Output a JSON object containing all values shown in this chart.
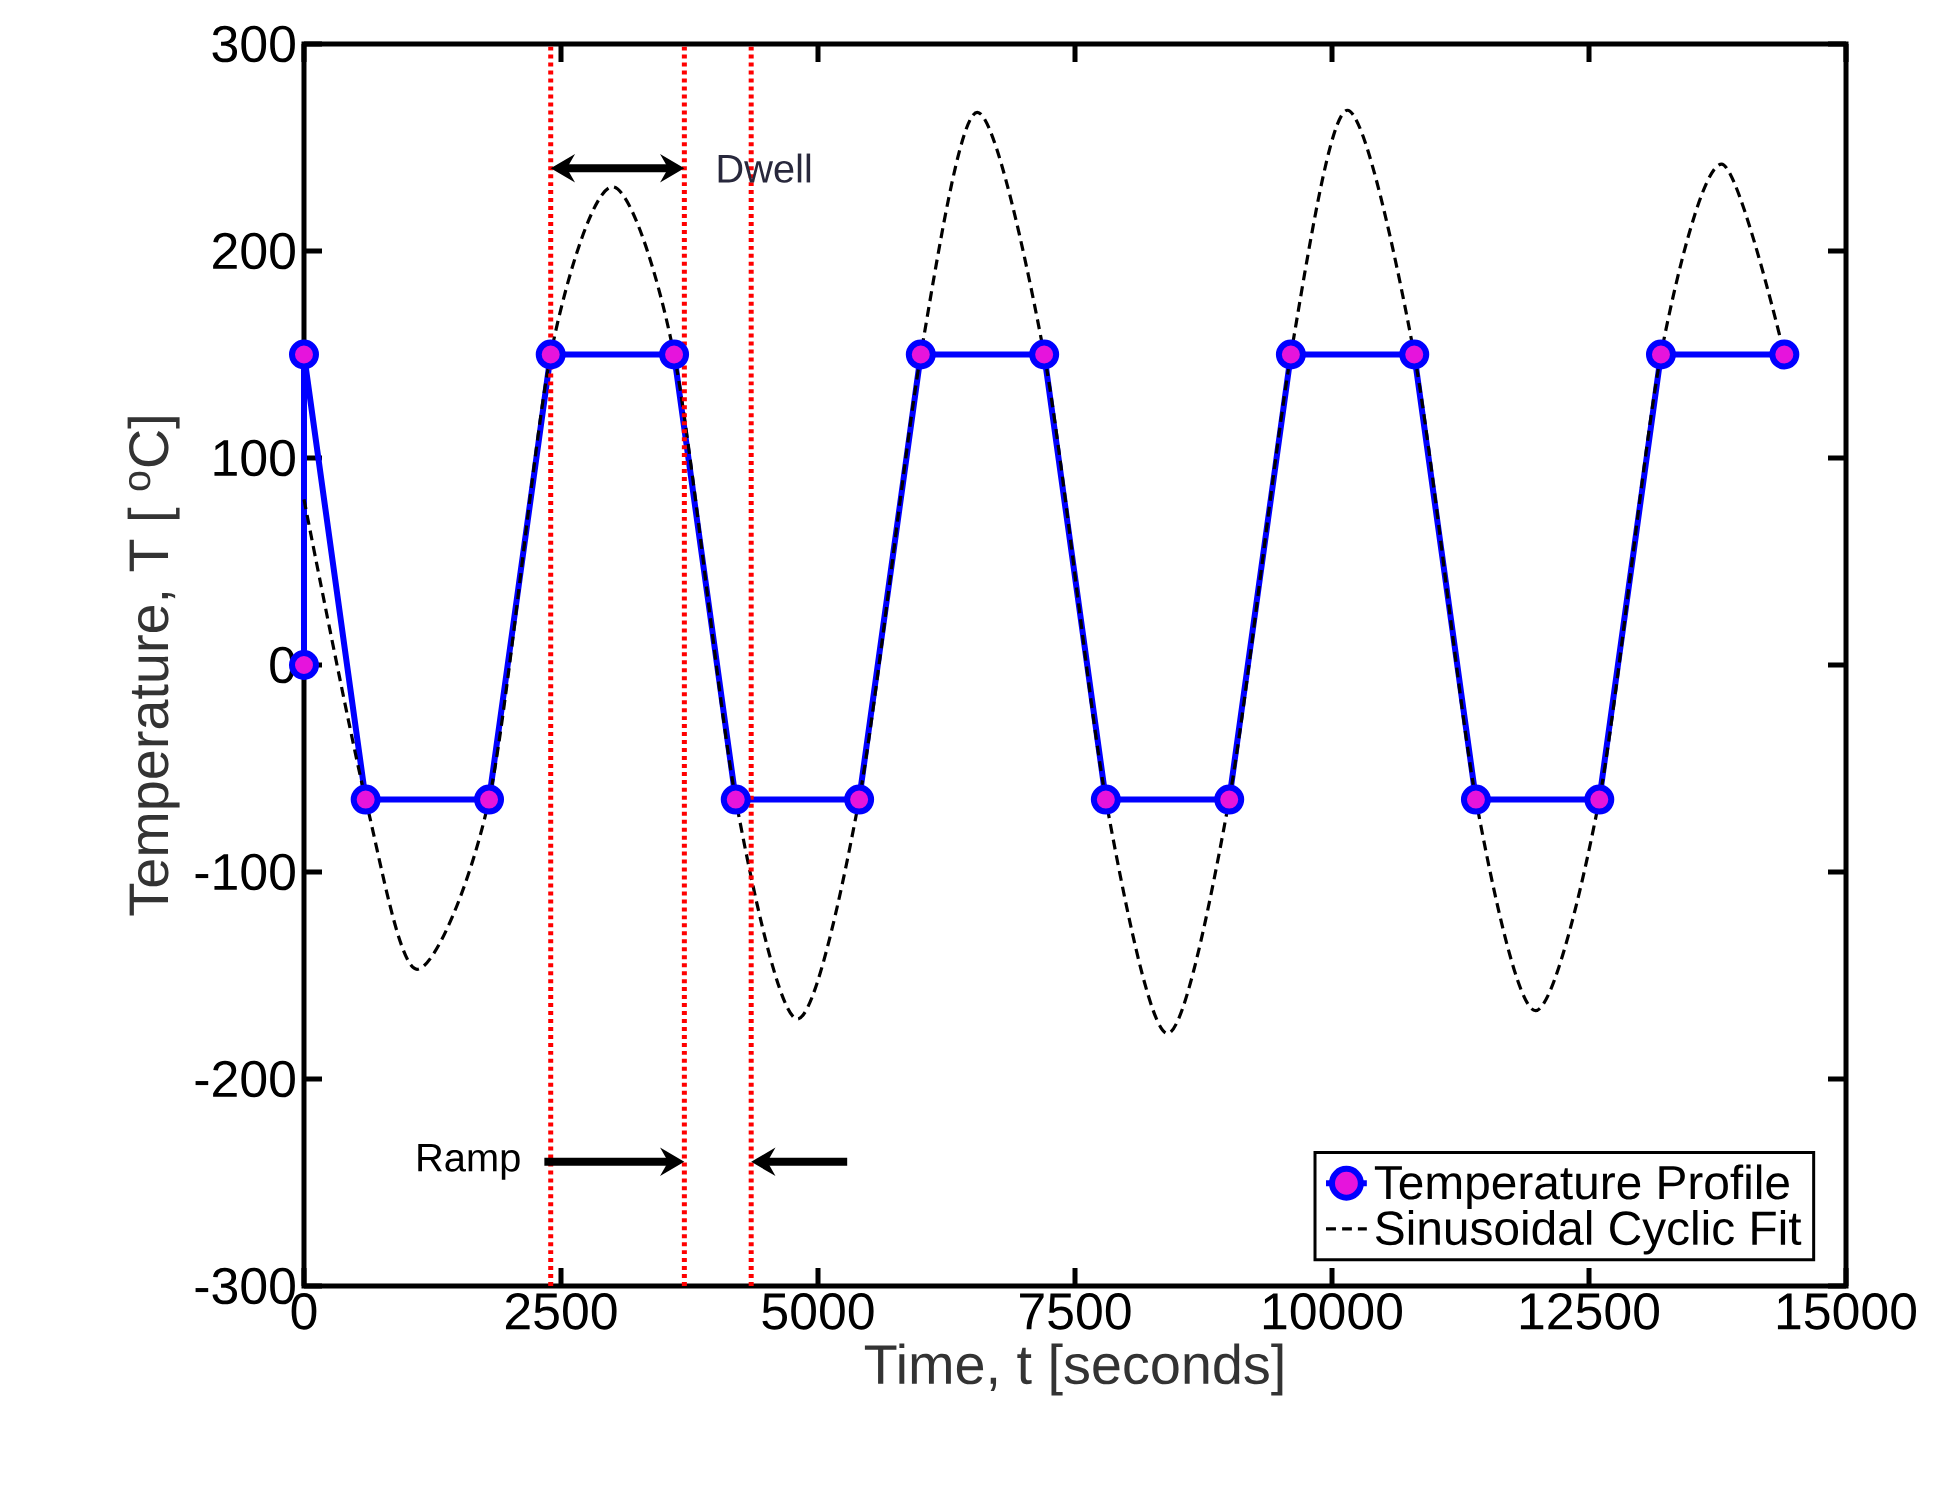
{
  "chart_data": {
    "type": "line",
    "xlabel": "Time, t [seconds]",
    "ylabel": "Temperature, T [ $^{o}$C]",
    "series": [
      {
        "name": "Temperature Profile",
        "color": "#0000ff",
        "marker": "circle",
        "line_style": "solid",
        "x": [
          0,
          0,
          600,
          1800,
          2400,
          3600,
          4200,
          5400,
          6000,
          7200,
          7800,
          9000,
          9600,
          10800,
          11400,
          12600,
          13200,
          14400
        ],
        "values": [
          0,
          150,
          -65,
          -65,
          150,
          150,
          -65,
          -65,
          150,
          150,
          -65,
          -65,
          150,
          150,
          -65,
          -65,
          150,
          150
        ]
      },
      {
        "name": "Sinusoidal Cyclic Fit",
        "color": "#000000",
        "marker": "none",
        "line_style": "dashed",
        "x": [
          0,
          600,
          1100,
          1800,
          2400,
          3000,
          3600,
          4200,
          4800,
          5400,
          6000,
          6550,
          7200,
          7800,
          8400,
          9000,
          9600,
          10150,
          10800,
          11400,
          11980,
          12600,
          13200,
          13790,
          14400
        ],
        "values": [
          80,
          -65,
          -147,
          -65,
          150,
          231,
          150,
          -65,
          -171,
          -65,
          150,
          267,
          150,
          -65,
          -178,
          -65,
          150,
          268,
          150,
          -65,
          -167,
          -65,
          150,
          242,
          150
        ]
      }
    ],
    "xlim": [
      0,
      15000
    ],
    "ylim": [
      -300,
      300
    ],
    "xticks": [
      0,
      2500,
      5000,
      7500,
      10000,
      12500,
      15000
    ],
    "yticks": [
      -300,
      -200,
      -100,
      0,
      100,
      200,
      300
    ],
    "grid": false,
    "legend": "bottom right",
    "ref_lines": [
      {
        "axis": "x",
        "value": 2400,
        "color": "#ff0000",
        "line_style": "dotted"
      },
      {
        "axis": "x",
        "value": 3700,
        "color": "#ff0000",
        "line_style": "dotted"
      },
      {
        "axis": "x",
        "value": 4350,
        "color": "#ff0000",
        "line_style": "dotted"
      }
    ],
    "annotations": [
      "Dwell",
      "Ramp"
    ]
  }
}
